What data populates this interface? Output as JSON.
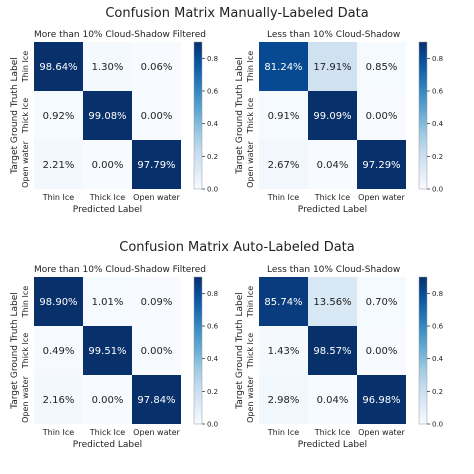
{
  "titles": {
    "manual": "Confusion Matrix Manually-Labeled Data",
    "auto": "Confusion Matrix Auto-Labeled Data"
  },
  "colorscale": {
    "low": "#f7fbff",
    "high": "#08306b",
    "stops": [
      "#f7fbff",
      "#deebf7",
      "#c6dbef",
      "#9ecae1",
      "#6baed6",
      "#4292c6",
      "#2171b5",
      "#08519c",
      "#08306b"
    ]
  },
  "chart_data": [
    {
      "type": "heatmap",
      "group": "manual",
      "title": "More than 10% Cloud-Shadow Filtered",
      "xlabel": "Predicted Label",
      "ylabel": "Target Ground Truth Label",
      "x_categories": [
        "Thin Ice",
        "Thick Ice",
        "Open water"
      ],
      "y_categories": [
        "Thin Ice",
        "Thick Ice",
        "Open water"
      ],
      "values": [
        [
          0.9864,
          0.013,
          0.0006
        ],
        [
          0.0092,
          0.9908,
          0.0
        ],
        [
          0.0221,
          0.0,
          0.9779
        ]
      ],
      "labels": [
        [
          "98.64%",
          "1.30%",
          "0.06%"
        ],
        [
          "0.92%",
          "99.08%",
          "0.00%"
        ],
        [
          "2.21%",
          "0.00%",
          "97.79%"
        ]
      ],
      "colorbar": {
        "min": 0.0,
        "max": 0.9,
        "ticks": [
          "0.0",
          "0.2",
          "0.4",
          "0.6",
          "0.8"
        ]
      }
    },
    {
      "type": "heatmap",
      "group": "manual",
      "title": "Less than 10% Cloud-Shadow",
      "xlabel": "Predicted Label",
      "ylabel": "Target Ground Truth Label",
      "x_categories": [
        "Thin Ice",
        "Thick Ice",
        "Open water"
      ],
      "y_categories": [
        "Thin Ice",
        "Thick Ice",
        "Open water"
      ],
      "values": [
        [
          0.8124,
          0.1791,
          0.0085
        ],
        [
          0.0091,
          0.9909,
          0.0
        ],
        [
          0.0267,
          0.0004,
          0.9729
        ]
      ],
      "labels": [
        [
          "81.24%",
          "17.91%",
          "0.85%"
        ],
        [
          "0.91%",
          "99.09%",
          "0.00%"
        ],
        [
          "2.67%",
          "0.04%",
          "97.29%"
        ]
      ],
      "colorbar": {
        "min": 0.0,
        "max": 0.9,
        "ticks": [
          "0.0",
          "0.2",
          "0.4",
          "0.6",
          "0.8"
        ]
      }
    },
    {
      "type": "heatmap",
      "group": "auto",
      "title": "More than 10% Cloud-Shadow Filtered",
      "xlabel": "Predicted Label",
      "ylabel": "Target Ground Truth Label",
      "x_categories": [
        "Thin Ice",
        "Thick Ice",
        "Open water"
      ],
      "y_categories": [
        "Thin Ice",
        "Thick Ice",
        "Open water"
      ],
      "values": [
        [
          0.989,
          0.0101,
          0.0009
        ],
        [
          0.0049,
          0.9951,
          0.0
        ],
        [
          0.0216,
          0.0,
          0.9784
        ]
      ],
      "labels": [
        [
          "98.90%",
          "1.01%",
          "0.09%"
        ],
        [
          "0.49%",
          "99.51%",
          "0.00%"
        ],
        [
          "2.16%",
          "0.00%",
          "97.84%"
        ]
      ],
      "colorbar": {
        "min": 0.0,
        "max": 0.9,
        "ticks": [
          "0.0",
          "0.2",
          "0.4",
          "0.6",
          "0.8"
        ]
      }
    },
    {
      "type": "heatmap",
      "group": "auto",
      "title": "Less than 10% Cloud-Shadow",
      "xlabel": "Predicted Label",
      "ylabel": "Target Ground Truth Label",
      "x_categories": [
        "Thin Ice",
        "Thick Ice",
        "Open water"
      ],
      "y_categories": [
        "Thin Ice",
        "Thick Ice",
        "Open water"
      ],
      "values": [
        [
          0.8574,
          0.1356,
          0.007
        ],
        [
          0.0143,
          0.9857,
          0.0
        ],
        [
          0.0298,
          0.0004,
          0.9698
        ]
      ],
      "labels": [
        [
          "85.74%",
          "13.56%",
          "0.70%"
        ],
        [
          "1.43%",
          "98.57%",
          "0.00%"
        ],
        [
          "2.98%",
          "0.04%",
          "96.98%"
        ]
      ],
      "colorbar": {
        "min": 0.0,
        "max": 0.9,
        "ticks": [
          "0.0",
          "0.2",
          "0.4",
          "0.6",
          "0.8"
        ]
      }
    }
  ]
}
